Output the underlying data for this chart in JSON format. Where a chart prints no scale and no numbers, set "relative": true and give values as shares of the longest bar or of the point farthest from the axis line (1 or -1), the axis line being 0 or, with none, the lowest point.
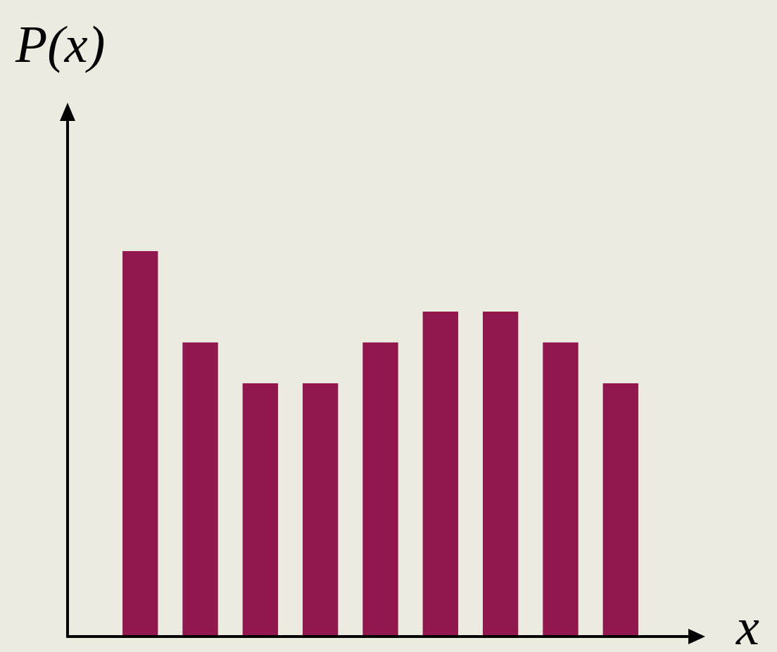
{
  "chart_data": {
    "type": "bar",
    "xlabel": "x",
    "ylabel": "P(x)",
    "relative": true,
    "color": "#93174f",
    "categories": [
      null,
      null,
      null,
      null,
      null,
      null,
      null,
      null,
      null
    ],
    "values": [
      1,
      0.763,
      0.657,
      0.657,
      0.763,
      0.843,
      0.843,
      0.763,
      0.657
    ]
  }
}
